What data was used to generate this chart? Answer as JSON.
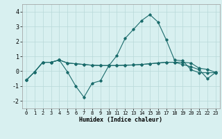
{
  "xlabel": "Humidex (Indice chaleur)",
  "x": [
    0,
    1,
    2,
    3,
    4,
    5,
    6,
    7,
    8,
    9,
    10,
    11,
    12,
    13,
    14,
    15,
    16,
    17,
    18,
    19,
    20,
    21,
    22,
    23
  ],
  "line1_y": [
    -0.6,
    -0.05,
    0.6,
    0.6,
    0.75,
    -0.05,
    -1.0,
    -1.75,
    -0.8,
    -0.65,
    0.35,
    1.05,
    2.2,
    2.8,
    3.4,
    3.8,
    3.3,
    2.1,
    0.75,
    0.7,
    0.1,
    -0.1,
    -0.1,
    -0.1
  ],
  "line2_y": [
    -0.6,
    -0.05,
    0.6,
    0.6,
    0.75,
    0.55,
    0.5,
    0.45,
    0.4,
    0.38,
    0.38,
    0.38,
    0.4,
    0.42,
    0.45,
    0.5,
    0.55,
    0.6,
    0.6,
    0.6,
    0.55,
    0.2,
    0.12,
    -0.08
  ],
  "line3_y": [
    -0.6,
    -0.05,
    0.6,
    0.6,
    0.75,
    0.55,
    0.5,
    0.45,
    0.4,
    0.38,
    0.38,
    0.38,
    0.4,
    0.42,
    0.45,
    0.5,
    0.55,
    0.6,
    0.6,
    0.45,
    0.3,
    0.1,
    -0.5,
    -0.08
  ],
  "line_color": "#1a6b6b",
  "bg_color": "#d8f0f0",
  "grid_color": "#b8d8d8",
  "ylim": [
    -2.5,
    4.5
  ],
  "xlim": [
    -0.5,
    23.5
  ],
  "yticks": [
    -2,
    -1,
    0,
    1,
    2,
    3,
    4
  ],
  "xticks": [
    0,
    1,
    2,
    3,
    4,
    5,
    6,
    7,
    8,
    9,
    10,
    11,
    12,
    13,
    14,
    15,
    16,
    17,
    18,
    19,
    20,
    21,
    22,
    23
  ]
}
